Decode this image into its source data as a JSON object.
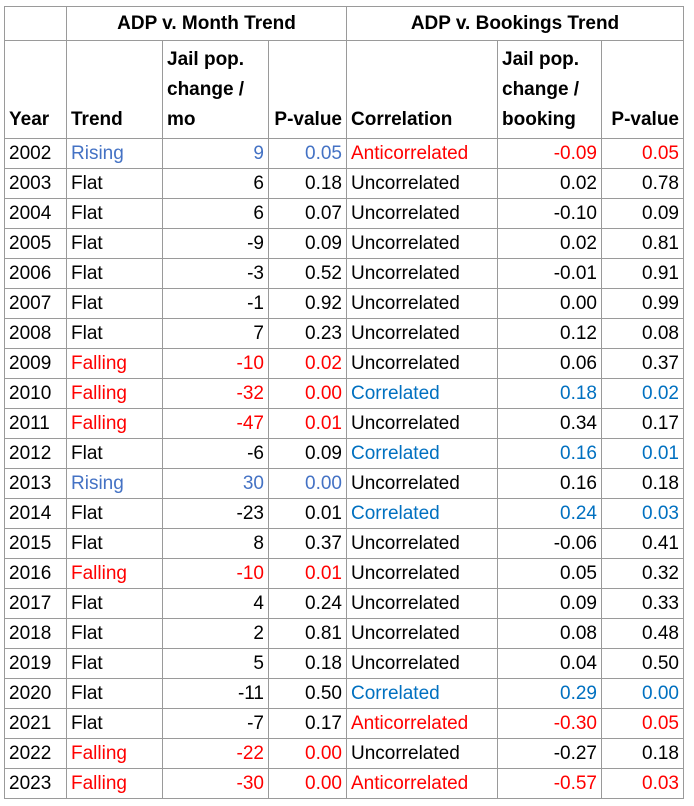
{
  "groups": {
    "month_trend": "ADP v. Month Trend",
    "bookings_trend": "ADP v. Bookings Trend"
  },
  "headers": {
    "year": "Year",
    "trend": "Trend",
    "jail_change_mo": "Jail pop. change / mo",
    "p_value_1": "P-value",
    "correlation": "Correlation",
    "jail_change_booking": "Jail pop. change / booking",
    "p_value_2": "P-value"
  },
  "rows": [
    {
      "year": "2002",
      "trend": "Rising",
      "change_mo": "9",
      "p1": "0.05",
      "correlation": "Anticorrelated",
      "change_bk": "-0.09",
      "p2": "0.05"
    },
    {
      "year": "2003",
      "trend": "Flat",
      "change_mo": "6",
      "p1": "0.18",
      "correlation": "Uncorrelated",
      "change_bk": "0.02",
      "p2": "0.78"
    },
    {
      "year": "2004",
      "trend": "Flat",
      "change_mo": "6",
      "p1": "0.07",
      "correlation": "Uncorrelated",
      "change_bk": "-0.10",
      "p2": "0.09"
    },
    {
      "year": "2005",
      "trend": "Flat",
      "change_mo": "-9",
      "p1": "0.09",
      "correlation": "Uncorrelated",
      "change_bk": "0.02",
      "p2": "0.81"
    },
    {
      "year": "2006",
      "trend": "Flat",
      "change_mo": "-3",
      "p1": "0.52",
      "correlation": "Uncorrelated",
      "change_bk": "-0.01",
      "p2": "0.91"
    },
    {
      "year": "2007",
      "trend": "Flat",
      "change_mo": "-1",
      "p1": "0.92",
      "correlation": "Uncorrelated",
      "change_bk": "0.00",
      "p2": "0.99"
    },
    {
      "year": "2008",
      "trend": "Flat",
      "change_mo": "7",
      "p1": "0.23",
      "correlation": "Uncorrelated",
      "change_bk": "0.12",
      "p2": "0.08"
    },
    {
      "year": "2009",
      "trend": "Falling",
      "change_mo": "-10",
      "p1": "0.02",
      "correlation": "Uncorrelated",
      "change_bk": "0.06",
      "p2": "0.37"
    },
    {
      "year": "2010",
      "trend": "Falling",
      "change_mo": "-32",
      "p1": "0.00",
      "correlation": "Correlated",
      "change_bk": "0.18",
      "p2": "0.02"
    },
    {
      "year": "2011",
      "trend": "Falling",
      "change_mo": "-47",
      "p1": "0.01",
      "correlation": "Uncorrelated",
      "change_bk": "0.34",
      "p2": "0.17"
    },
    {
      "year": "2012",
      "trend": "Flat",
      "change_mo": "-6",
      "p1": "0.09",
      "correlation": "Correlated",
      "change_bk": "0.16",
      "p2": "0.01"
    },
    {
      "year": "2013",
      "trend": "Rising",
      "change_mo": "30",
      "p1": "0.00",
      "correlation": "Uncorrelated",
      "change_bk": "0.16",
      "p2": "0.18"
    },
    {
      "year": "2014",
      "trend": "Flat",
      "change_mo": "-23",
      "p1": "0.01",
      "correlation": "Correlated",
      "change_bk": "0.24",
      "p2": "0.03"
    },
    {
      "year": "2015",
      "trend": "Flat",
      "change_mo": "8",
      "p1": "0.37",
      "correlation": "Uncorrelated",
      "change_bk": "-0.06",
      "p2": "0.41"
    },
    {
      "year": "2016",
      "trend": "Falling",
      "change_mo": "-10",
      "p1": "0.01",
      "correlation": "Uncorrelated",
      "change_bk": "0.05",
      "p2": "0.32"
    },
    {
      "year": "2017",
      "trend": "Flat",
      "change_mo": "4",
      "p1": "0.24",
      "correlation": "Uncorrelated",
      "change_bk": "0.09",
      "p2": "0.33"
    },
    {
      "year": "2018",
      "trend": "Flat",
      "change_mo": "2",
      "p1": "0.81",
      "correlation": "Uncorrelated",
      "change_bk": "0.08",
      "p2": "0.48"
    },
    {
      "year": "2019",
      "trend": "Flat",
      "change_mo": "5",
      "p1": "0.18",
      "correlation": "Uncorrelated",
      "change_bk": "0.04",
      "p2": "0.50"
    },
    {
      "year": "2020",
      "trend": "Flat",
      "change_mo": "-11",
      "p1": "0.50",
      "correlation": "Correlated",
      "change_bk": "0.29",
      "p2": "0.00"
    },
    {
      "year": "2021",
      "trend": "Flat",
      "change_mo": "-7",
      "p1": "0.17",
      "correlation": "Anticorrelated",
      "change_bk": "-0.30",
      "p2": "0.05"
    },
    {
      "year": "2022",
      "trend": "Falling",
      "change_mo": "-22",
      "p1": "0.00",
      "correlation": "Uncorrelated",
      "change_bk": "-0.27",
      "p2": "0.18"
    },
    {
      "year": "2023",
      "trend": "Falling",
      "change_mo": "-30",
      "p1": "0.00",
      "correlation": "Anticorrelated",
      "change_bk": "-0.57",
      "p2": "0.03"
    }
  ],
  "colors": {
    "rising": "#4472c4",
    "falling": "#ff0000",
    "correlated": "#0070c0",
    "anticorrelated": "#ff0000",
    "neutral": "#000000",
    "grid": "#9a9a9a"
  }
}
